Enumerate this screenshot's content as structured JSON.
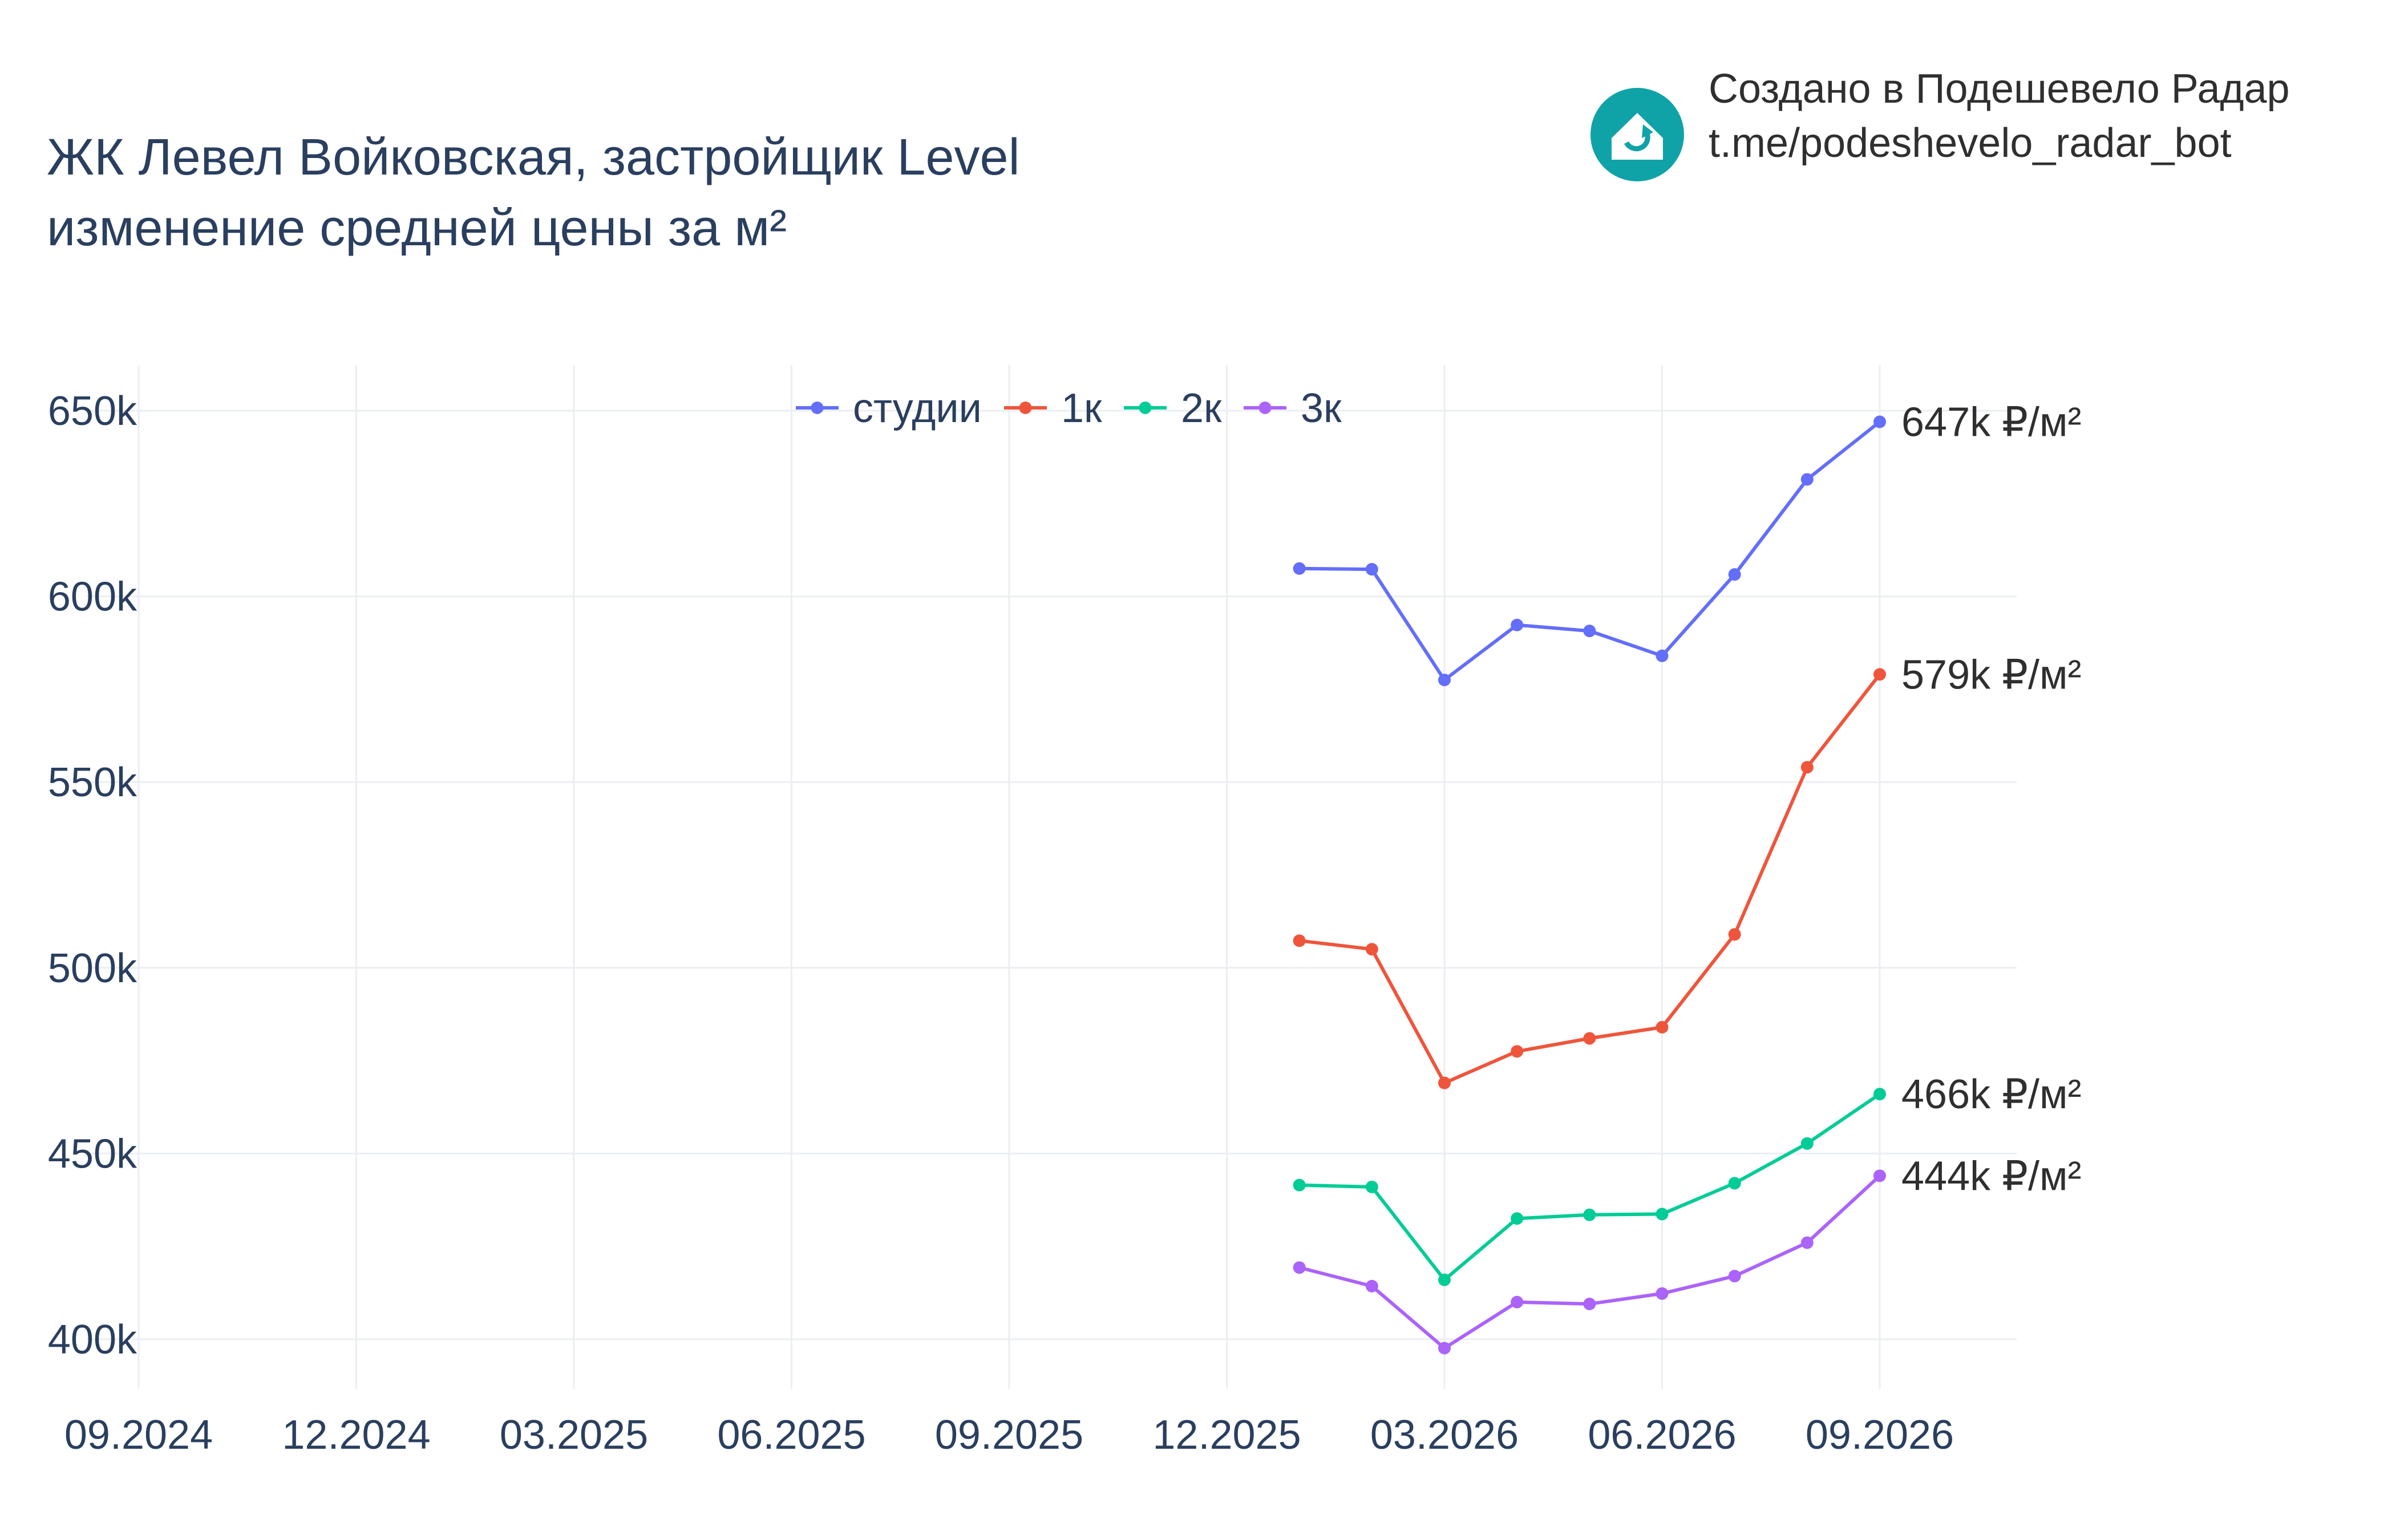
{
  "header": {
    "title_line1": "ЖК Левел Войковская, застройщик Level",
    "title_line2": "изменение средней цены за м²"
  },
  "branding": {
    "line1": "Создано в Подешевело Радар",
    "line2": "t.me/podeshevelo_radar_bot",
    "logo_color": "#0fa3a8",
    "logo_icon": "house-refresh-icon"
  },
  "chart_data": {
    "type": "line",
    "x_labels": [
      "09.2024",
      "12.2024",
      "03.2025",
      "06.2025",
      "09.2025",
      "12.2025",
      "03.2026",
      "06.2026",
      "09.2026"
    ],
    "x": [
      "01.2026",
      "02.2026",
      "03.2026",
      "04.2026",
      "05.2026",
      "06.2026",
      "07.2026",
      "08.2026",
      "09.2026"
    ],
    "y_ticks": [
      400000,
      450000,
      500000,
      550000,
      600000,
      650000
    ],
    "y_tick_labels": [
      "400k",
      "450k",
      "500k",
      "550k",
      "600k",
      "650k"
    ],
    "ylim": [
      383000,
      663000
    ],
    "grid": true,
    "legend_position": "top-center",
    "series": [
      {
        "name": "студии",
        "color": "#636efa",
        "values": [
          607500,
          607300,
          577500,
          592300,
          590700,
          584000,
          605900,
          631500,
          647000
        ],
        "end_label": "647k ₽/м²"
      },
      {
        "name": "1к",
        "color": "#ef553b",
        "values": [
          507300,
          505000,
          469000,
          477500,
          481000,
          484000,
          509000,
          554000,
          579000
        ],
        "end_label": "579k ₽/м²"
      },
      {
        "name": "2к",
        "color": "#00cc96",
        "values": [
          441500,
          441000,
          416000,
          432500,
          433500,
          433700,
          442000,
          452700,
          466000
        ],
        "end_label": "466k ₽/м²"
      },
      {
        "name": "3к",
        "color": "#ab63fa",
        "values": [
          419300,
          414300,
          397600,
          410000,
          409500,
          412300,
          417000,
          426000,
          444000
        ],
        "end_label": "444k ₽/м²"
      }
    ]
  }
}
